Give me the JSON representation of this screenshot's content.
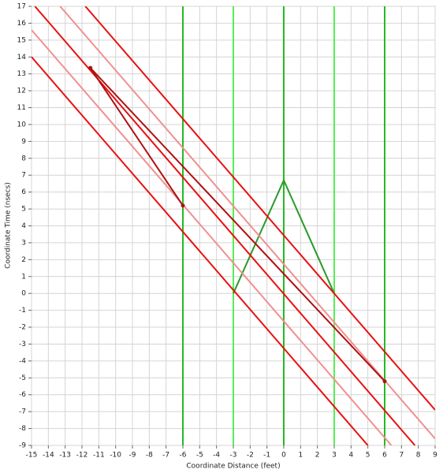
{
  "chart_data": {
    "type": "line",
    "xlabel": "Coordinate Distance (feet)",
    "ylabel": "Coordinate Time (nsecs)",
    "xlim": [
      -15,
      9
    ],
    "ylim": [
      -9,
      17
    ],
    "xticks": [
      -15,
      -14,
      -13,
      -12,
      -11,
      -10,
      -9,
      -8,
      -7,
      -6,
      -5,
      -4,
      -3,
      -2,
      -1,
      0,
      1,
      2,
      3,
      4,
      5,
      6,
      7,
      8,
      9
    ],
    "yticks": [
      -9,
      -8,
      -7,
      -6,
      -5,
      -4,
      -3,
      -2,
      -1,
      0,
      1,
      2,
      3,
      4,
      5,
      6,
      7,
      8,
      9,
      10,
      11,
      12,
      13,
      14,
      15,
      16,
      17
    ],
    "grid": true,
    "series": [
      {
        "color": "#22bb22",
        "x": [
          -6,
          -6
        ],
        "values": [
          -9,
          17
        ]
      },
      {
        "color": "#55ee55",
        "x": [
          -3,
          -3
        ],
        "values": [
          -9,
          17
        ]
      },
      {
        "color": "#22bb22",
        "x": [
          0,
          0
        ],
        "values": [
          -9,
          17
        ]
      },
      {
        "color": "#55ee55",
        "x": [
          3,
          3
        ],
        "values": [
          -9,
          17
        ]
      },
      {
        "color": "#22bb22",
        "x": [
          6,
          6
        ],
        "values": [
          -9,
          17
        ]
      },
      {
        "color": "#2a9a2a",
        "x": [
          -3,
          0,
          3
        ],
        "values": [
          0,
          6.7,
          0
        ]
      },
      {
        "color": "#f09090",
        "x": [
          -15,
          6.4
        ],
        "values": [
          15.6,
          -9
        ]
      },
      {
        "color": "#f09090",
        "x": [
          -13.3,
          9
        ],
        "values": [
          17,
          -8.6
        ]
      },
      {
        "color": "#e81010",
        "x": [
          -15,
          5
        ],
        "values": [
          14,
          -9
        ]
      },
      {
        "color": "#e81010",
        "x": [
          -14.8,
          7.8
        ],
        "values": [
          17,
          -9
        ]
      },
      {
        "color": "#e81010",
        "x": [
          -11.8,
          9
        ],
        "values": [
          17,
          -6.9
        ]
      },
      {
        "color": "#b01010",
        "x": [
          -11.5,
          6
        ],
        "values": [
          13.35,
          -5.2
        ],
        "markers": true
      },
      {
        "color": "#b01010",
        "x": [
          -11.5,
          -6
        ],
        "values": [
          13.35,
          5.2
        ],
        "markers": true
      }
    ]
  }
}
